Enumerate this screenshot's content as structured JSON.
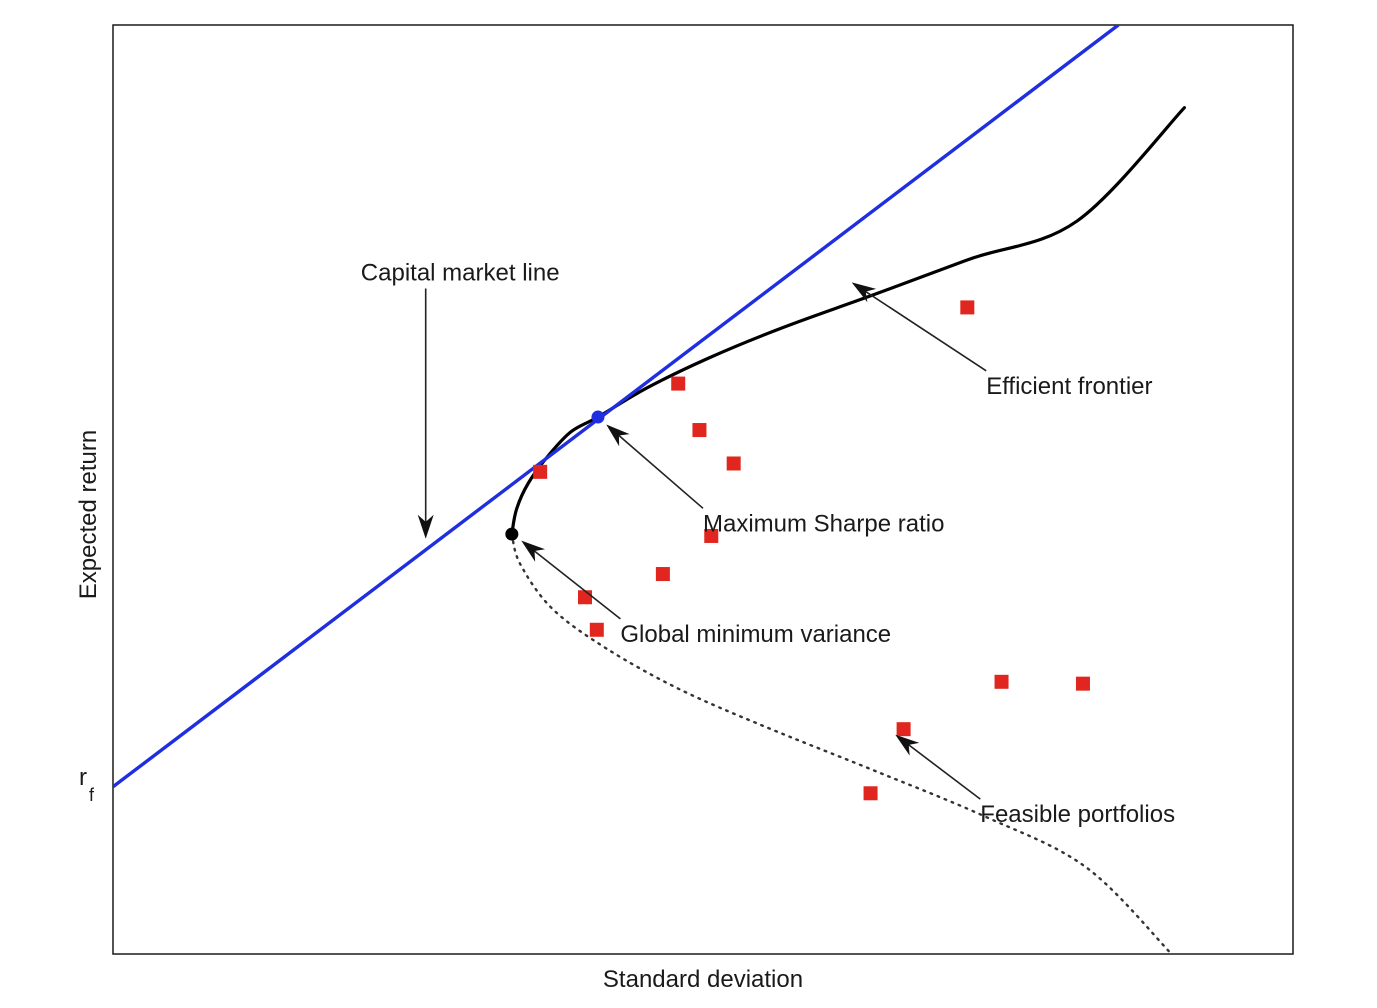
{
  "chart_data": {
    "type": "scatter",
    "title": "",
    "xlabel": "Standard deviation",
    "ylabel": "Expected return",
    "xlim": [
      0,
      1
    ],
    "ylim": [
      0,
      1
    ],
    "y_tick_labels": [
      {
        "y": 0.18,
        "label": "r",
        "subscript": "f"
      }
    ],
    "grid": false,
    "capital_market_line": {
      "name": "Capital market line",
      "color": "#1f2fe0",
      "points": [
        [
          0.0,
          0.18
        ],
        [
          0.852,
          1.0
        ]
      ]
    },
    "efficient_frontier": {
      "name": "Efficient frontier",
      "color": "#000000",
      "vertex": [
        0.338,
        0.452
      ],
      "tangency": [
        0.411,
        0.578
      ],
      "points": [
        [
          0.338,
          0.452
        ],
        [
          0.342,
          0.479
        ],
        [
          0.352,
          0.507
        ],
        [
          0.368,
          0.535
        ],
        [
          0.388,
          0.562
        ],
        [
          0.411,
          0.578
        ],
        [
          0.452,
          0.609
        ],
        [
          0.504,
          0.641
        ],
        [
          0.567,
          0.674
        ],
        [
          0.641,
          0.708
        ],
        [
          0.726,
          0.748
        ],
        [
          0.817,
          0.789
        ],
        [
          0.908,
          0.911
        ]
      ]
    },
    "inefficient_frontier": {
      "name": "Inefficient frontier (dotted)",
      "color": "#333333",
      "points": [
        [
          0.338,
          0.452
        ],
        [
          0.345,
          0.42
        ],
        [
          0.372,
          0.372
        ],
        [
          0.418,
          0.329
        ],
        [
          0.48,
          0.285
        ],
        [
          0.552,
          0.245
        ],
        [
          0.642,
          0.199
        ],
        [
          0.739,
          0.148
        ],
        [
          0.825,
          0.093
        ],
        [
          0.897,
          0.0
        ]
      ]
    },
    "special_points": [
      {
        "name": "Maximum Sharpe ratio",
        "x": 0.411,
        "y": 0.578,
        "color": "#1f2fe0"
      },
      {
        "name": "Global minimum variance",
        "x": 0.338,
        "y": 0.452,
        "color": "#000000"
      }
    ],
    "feasible_portfolios": {
      "name": "Feasible portfolios",
      "color": "#e0261e",
      "points": [
        [
          0.724,
          0.696
        ],
        [
          0.479,
          0.614
        ],
        [
          0.497,
          0.564
        ],
        [
          0.526,
          0.528
        ],
        [
          0.362,
          0.519
        ],
        [
          0.507,
          0.45
        ],
        [
          0.466,
          0.409
        ],
        [
          0.4,
          0.384
        ],
        [
          0.41,
          0.349
        ],
        [
          0.753,
          0.293
        ],
        [
          0.822,
          0.291
        ],
        [
          0.67,
          0.242
        ],
        [
          0.642,
          0.173
        ]
      ]
    },
    "annotations": [
      {
        "name": "capital-market-line",
        "text": "Capital market line",
        "target": [
          0.265,
          0.447
        ],
        "text_anchor_xy": [
          0.21,
          0.725
        ]
      },
      {
        "name": "efficient-frontier",
        "text": "Efficient frontier",
        "target": [
          0.626,
          0.723
        ],
        "text_anchor_xy": [
          0.74,
          0.603
        ]
      },
      {
        "name": "maximum-sharpe-ratio",
        "text": "Maximum Sharpe ratio",
        "target": [
          0.418,
          0.57
        ],
        "text_anchor_xy": [
          0.5,
          0.455
        ]
      },
      {
        "name": "global-minimum-variance",
        "text": "Global minimum variance",
        "target": [
          0.346,
          0.445
        ],
        "text_anchor_xy": [
          0.43,
          0.336
        ]
      },
      {
        "name": "feasible-portfolios",
        "text": "Feasible portfolios",
        "target": [
          0.663,
          0.236
        ],
        "text_anchor_xy": [
          0.735,
          0.142
        ]
      }
    ]
  }
}
